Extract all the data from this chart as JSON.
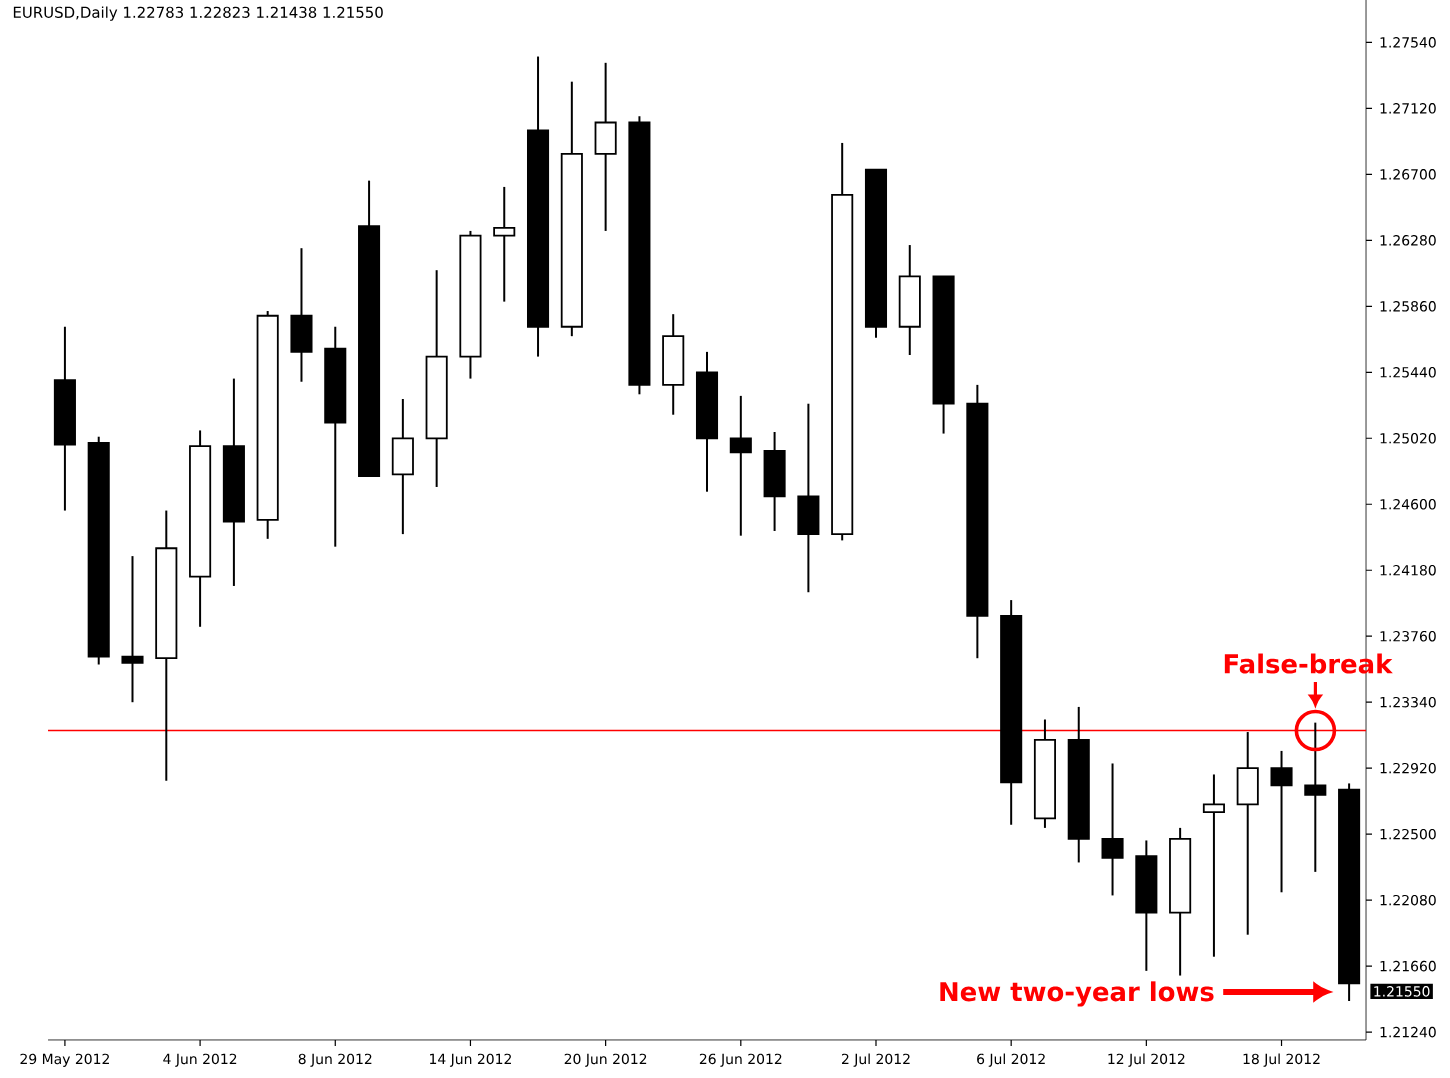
{
  "chart_data": {
    "type": "candlestick",
    "title": "EURUSD,Daily  1.22783 1.22823 1.21438 1.21550",
    "categories": [
      "29 May 2012",
      null,
      null,
      null,
      "4 Jun 2012",
      null,
      null,
      null,
      "8 Jun 2012",
      null,
      null,
      null,
      "14 Jun 2012",
      null,
      null,
      null,
      "20 Jun 2012",
      null,
      null,
      null,
      "26 Jun 2012",
      null,
      null,
      null,
      "2 Jul 2012",
      null,
      null,
      null,
      "6 Jul 2012",
      null,
      null,
      null,
      "12 Jul 2012",
      null,
      null,
      null,
      "18 Jul 2012",
      null,
      null
    ],
    "ohlc": [
      [
        1.2539,
        1.2573,
        1.2456,
        1.2498
      ],
      [
        1.2499,
        1.2503,
        1.2358,
        1.2363
      ],
      [
        1.2363,
        1.2427,
        1.2334,
        1.2359
      ],
      [
        1.2362,
        1.2456,
        1.2284,
        1.2432
      ],
      [
        1.2414,
        1.2507,
        1.2382,
        1.2497
      ],
      [
        1.2497,
        1.254,
        1.2408,
        1.2449
      ],
      [
        1.245,
        1.2583,
        1.2438,
        1.258
      ],
      [
        1.258,
        1.2623,
        1.2538,
        1.2557
      ],
      [
        1.2559,
        1.2573,
        1.2433,
        1.2512
      ],
      [
        1.2637,
        1.2666,
        1.2478,
        1.2478
      ],
      [
        1.2479,
        1.2527,
        1.2441,
        1.2502
      ],
      [
        1.2502,
        1.2609,
        1.2471,
        1.2554
      ],
      [
        1.2554,
        1.2634,
        1.254,
        1.2631
      ],
      [
        1.2631,
        1.2662,
        1.2589,
        1.2636
      ],
      [
        1.2698,
        1.2745,
        1.2554,
        1.2573
      ],
      [
        1.2573,
        1.2729,
        1.2567,
        1.2683
      ],
      [
        1.2683,
        1.2741,
        1.2634,
        1.2703
      ],
      [
        1.2703,
        1.2707,
        1.253,
        1.2536
      ],
      [
        1.2536,
        1.2581,
        1.2517,
        1.2567
      ],
      [
        1.2544,
        1.2557,
        1.2468,
        1.2502
      ],
      [
        1.2502,
        1.2529,
        1.244,
        1.2493
      ],
      [
        1.2494,
        1.2506,
        1.2443,
        1.2465
      ],
      [
        1.2465,
        1.2524,
        1.2404,
        1.2441
      ],
      [
        1.2441,
        1.269,
        1.2437,
        1.2657
      ],
      [
        1.2673,
        1.2673,
        1.2566,
        1.2573
      ],
      [
        1.2573,
        1.2625,
        1.2555,
        1.2605
      ],
      [
        1.2605,
        1.2605,
        1.2505,
        1.2524
      ],
      [
        1.2524,
        1.2536,
        1.2362,
        1.2389
      ],
      [
        1.2389,
        1.2399,
        1.2256,
        1.2283
      ],
      [
        1.226,
        1.2323,
        1.2254,
        1.231
      ],
      [
        1.231,
        1.2331,
        1.2232,
        1.2247
      ],
      [
        1.2247,
        1.2295,
        1.2211,
        1.2235
      ],
      [
        1.2236,
        1.2246,
        1.2163,
        1.22
      ],
      [
        1.22,
        1.2254,
        1.216,
        1.2247
      ],
      [
        1.2264,
        1.2288,
        1.2172,
        1.2269
      ],
      [
        1.2269,
        1.2315,
        1.2186,
        1.2292
      ],
      [
        1.2292,
        1.2303,
        1.2213,
        1.2281
      ],
      [
        1.2281,
        1.2321,
        1.2226,
        1.2275
      ],
      [
        1.22783,
        1.22823,
        1.21438,
        1.2155
      ]
    ],
    "ylim": [
      1.2119,
      1.2781
    ],
    "yticks": [
      {
        "value": 1.2124,
        "label": "1.21240"
      },
      {
        "value": 1.2166,
        "label": "1.21660"
      },
      {
        "value": 1.2208,
        "label": "1.22080"
      },
      {
        "value": 1.225,
        "label": "1.22500"
      },
      {
        "value": 1.2292,
        "label": "1.22920"
      },
      {
        "value": 1.2334,
        "label": "1.23340"
      },
      {
        "value": 1.2376,
        "label": "1.23760"
      },
      {
        "value": 1.2418,
        "label": "1.24180"
      },
      {
        "value": 1.246,
        "label": "1.24600"
      },
      {
        "value": 1.2502,
        "label": "1.25020"
      },
      {
        "value": 1.2544,
        "label": "1.25440"
      },
      {
        "value": 1.2586,
        "label": "1.25860"
      },
      {
        "value": 1.2628,
        "label": "1.26280"
      },
      {
        "value": 1.267,
        "label": "1.26700"
      },
      {
        "value": 1.2712,
        "label": "1.27120"
      },
      {
        "value": 1.2754,
        "label": "1.27540"
      }
    ],
    "ref_lines": [
      {
        "axis": "y",
        "value": 1.2316,
        "color": "#ff0000"
      }
    ],
    "annotations": [
      "False-break",
      "New two-year lows",
      "1.21550"
    ]
  }
}
